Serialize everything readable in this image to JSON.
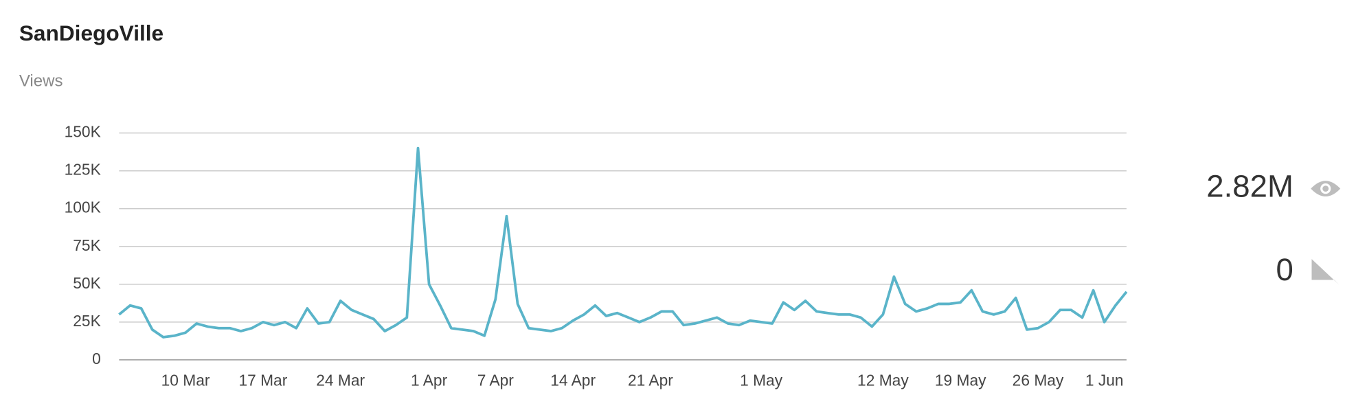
{
  "chart_data": {
    "type": "line",
    "title": "SanDiegoVille",
    "subtitle": "Views",
    "categories": [
      null,
      null,
      null,
      null,
      null,
      null,
      "10 Mar",
      null,
      null,
      null,
      null,
      null,
      null,
      "17 Mar",
      null,
      null,
      null,
      null,
      null,
      null,
      "24 Mar",
      null,
      null,
      null,
      null,
      null,
      null,
      null,
      "1 Apr",
      null,
      null,
      null,
      null,
      null,
      "7 Apr",
      null,
      null,
      null,
      null,
      null,
      null,
      "14 Apr",
      null,
      null,
      null,
      null,
      null,
      null,
      "21 Apr",
      null,
      null,
      null,
      null,
      null,
      null,
      null,
      null,
      null,
      "1 May",
      null,
      null,
      null,
      null,
      null,
      null,
      null,
      null,
      null,
      null,
      "12 May",
      null,
      null,
      null,
      null,
      null,
      null,
      "19 May",
      null,
      null,
      null,
      null,
      null,
      null,
      "26 May",
      null,
      null,
      null,
      null,
      null,
      "1 Jun",
      null,
      null
    ],
    "values": [
      30000,
      36000,
      34000,
      20000,
      15000,
      16000,
      18000,
      24000,
      22000,
      21000,
      21000,
      19000,
      21000,
      25000,
      23000,
      25000,
      21000,
      34000,
      24000,
      25000,
      39000,
      33000,
      30000,
      27000,
      19000,
      23000,
      28000,
      140000,
      50000,
      36000,
      21000,
      20000,
      19000,
      16000,
      40000,
      95000,
      37000,
      21000,
      20000,
      19000,
      21000,
      26000,
      30000,
      36000,
      29000,
      31000,
      28000,
      25000,
      28000,
      32000,
      32000,
      23000,
      24000,
      26000,
      28000,
      24000,
      23000,
      26000,
      25000,
      24000,
      38000,
      33000,
      39000,
      32000,
      31000,
      30000,
      30000,
      28000,
      22000,
      30000,
      55000,
      37000,
      32000,
      34000,
      37000,
      37000,
      38000,
      46000,
      32000,
      30000,
      32000,
      41000,
      20000,
      21000,
      25000,
      33000,
      33000,
      28000,
      46000,
      25000,
      36000,
      45000
    ],
    "color": "#5ab4c9",
    "ylim": [
      0,
      150000
    ],
    "yticks": [
      0,
      {
        "value": 25000,
        "label": "25K"
      },
      {
        "value": 50000,
        "label": "50K"
      },
      {
        "value": 75000,
        "label": "75K"
      },
      {
        "value": 100000,
        "label": "100K"
      },
      {
        "value": 125000,
        "label": "125K"
      },
      {
        "value": 150000,
        "label": "150K"
      }
    ],
    "grid": true
  },
  "stats": {
    "views": "2.82M",
    "comments": 0
  }
}
